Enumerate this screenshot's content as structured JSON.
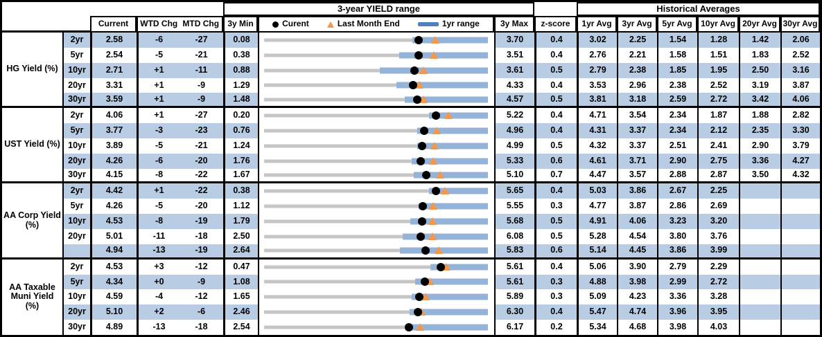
{
  "header": {
    "yield_range_title": "3-year YIELD range",
    "historical_title": "Historical Averages",
    "columns": {
      "current": "Current",
      "wtd_chg": "WTD Chg",
      "mtd_chg": "MTD Chg",
      "min_3y": "3y Min",
      "max_3y": "3y Max",
      "z_score": "z-score"
    },
    "avg_cols": [
      "1yr Avg",
      "3yr Avg",
      "5yr Avg",
      "10yr Avg",
      "20yr Avg",
      "30yr Avg"
    ],
    "legend": {
      "current": "Curent",
      "last_month_end": "Last Month End",
      "range_1yr": "1yr range"
    }
  },
  "colors": {
    "row_shade": "#b8cce4",
    "bar_1yr": "#95b3d7",
    "track_3y": "#c6c6c6",
    "current_dot": "#000000",
    "last_month_end_triangle": "#f79646",
    "legend_swatch": "#4f81bd",
    "border": "#000000"
  },
  "chart_data": {
    "type": "table",
    "embedded_chart": "horizontal-range-bar",
    "title": "3-year YIELD range",
    "legend_entries": [
      "Curent",
      "Last Month End",
      "1yr range"
    ],
    "columns": [
      "Current",
      "WTD Chg",
      "MTD Chg",
      "3y Min",
      "3y Max",
      "z-score",
      "1yr Avg",
      "3yr Avg",
      "5yr Avg",
      "10yr Avg",
      "20yr Avg",
      "30yr Avg"
    ],
    "note": "Each row chart spans 3y Min to 3y Max; gray track = 3y range, blue bar = 1yr range (low estimated from pixels, high = 3y Max), black dot = Current, orange triangle = Last Month End (Current - MTD/100).",
    "sections": [
      {
        "label": "HG Yield (%)",
        "rows": [
          {
            "tenor": "2yr",
            "current": "2.58",
            "wtd": "-6",
            "mtd": "-27",
            "min3y": "0.08",
            "max3y": "3.70",
            "zscore": "0.4",
            "avgs": [
              "3.02",
              "2.25",
              "1.54",
              "1.28",
              "1.42",
              "2.06"
            ],
            "last_month_end": 2.85,
            "bar1yr_low": 2.48,
            "bar1yr_high": 3.7
          },
          {
            "tenor": "5yr",
            "current": "2.54",
            "wtd": "-5",
            "mtd": "-21",
            "min3y": "0.38",
            "max3y": "3.51",
            "zscore": "0.4",
            "avgs": [
              "2.76",
              "2.21",
              "1.58",
              "1.51",
              "1.83",
              "2.52"
            ],
            "last_month_end": 2.75,
            "bar1yr_low": 2.27,
            "bar1yr_high": 3.51
          },
          {
            "tenor": "10yr",
            "current": "2.71",
            "wtd": "+1",
            "mtd": "-11",
            "min3y": "0.88",
            "max3y": "3.61",
            "zscore": "0.5",
            "avgs": [
              "2.79",
              "2.38",
              "1.85",
              "1.95",
              "2.50",
              "3.16"
            ],
            "last_month_end": 2.82,
            "bar1yr_low": 2.29,
            "bar1yr_high": 3.61
          },
          {
            "tenor": "20yr",
            "current": "3.31",
            "wtd": "+1",
            "mtd": "-9",
            "min3y": "1.29",
            "max3y": "4.33",
            "zscore": "0.4",
            "avgs": [
              "3.53",
              "2.96",
              "2.38",
              "2.52",
              "3.19",
              "3.87"
            ],
            "last_month_end": 3.4,
            "bar1yr_low": 3.09,
            "bar1yr_high": 4.33
          },
          {
            "tenor": "30yr",
            "current": "3.59",
            "wtd": "+1",
            "mtd": "-9",
            "min3y": "1.48",
            "max3y": "4.57",
            "zscore": "0.5",
            "avgs": [
              "3.81",
              "3.18",
              "2.59",
              "2.72",
              "3.42",
              "4.06"
            ],
            "last_month_end": 3.68,
            "bar1yr_low": 3.42,
            "bar1yr_high": 4.57
          }
        ]
      },
      {
        "label": "UST Yield (%)",
        "rows": [
          {
            "tenor": "2yr",
            "current": "4.06",
            "wtd": "+1",
            "mtd": "-27",
            "min3y": "0.20",
            "max3y": "5.22",
            "zscore": "0.4",
            "avgs": [
              "4.71",
              "3.54",
              "2.34",
              "1.87",
              "1.88",
              "2.82"
            ],
            "last_month_end": 4.33,
            "bar1yr_low": 3.9,
            "bar1yr_high": 5.22
          },
          {
            "tenor": "5yr",
            "current": "3.77",
            "wtd": "-3",
            "mtd": "-23",
            "min3y": "0.76",
            "max3y": "4.96",
            "zscore": "0.4",
            "avgs": [
              "4.31",
              "3.37",
              "2.34",
              "2.12",
              "2.35",
              "3.30"
            ],
            "last_month_end": 4.0,
            "bar1yr_low": 3.64,
            "bar1yr_high": 4.96
          },
          {
            "tenor": "10yr",
            "current": "3.89",
            "wtd": "-5",
            "mtd": "-21",
            "min3y": "1.24",
            "max3y": "4.99",
            "zscore": "0.5",
            "avgs": [
              "4.32",
              "3.37",
              "2.51",
              "2.41",
              "2.90",
              "3.79"
            ],
            "last_month_end": 4.1,
            "bar1yr_low": 3.81,
            "bar1yr_high": 4.99
          },
          {
            "tenor": "20yr",
            "current": "4.26",
            "wtd": "-6",
            "mtd": "-20",
            "min3y": "1.76",
            "max3y": "5.33",
            "zscore": "0.6",
            "avgs": [
              "4.61",
              "3.71",
              "2.90",
              "2.75",
              "3.36",
              "4.27"
            ],
            "last_month_end": 4.46,
            "bar1yr_low": 4.11,
            "bar1yr_high": 5.33
          },
          {
            "tenor": "30yr",
            "current": "4.15",
            "wtd": "-8",
            "mtd": "-22",
            "min3y": "1.67",
            "max3y": "5.10",
            "zscore": "0.7",
            "avgs": [
              "4.47",
              "3.57",
              "2.88",
              "2.87",
              "3.50",
              "4.32"
            ],
            "last_month_end": 4.37,
            "bar1yr_low": 3.96,
            "bar1yr_high": 5.1
          }
        ]
      },
      {
        "label": "AA Corp Yield (%)",
        "rows": [
          {
            "tenor": "2yr",
            "current": "4.42",
            "wtd": "+1",
            "mtd": "-22",
            "min3y": "0.38",
            "max3y": "5.65",
            "zscore": "0.4",
            "avgs": [
              "5.03",
              "3.86",
              "2.67",
              "2.25",
              "",
              ""
            ],
            "last_month_end": 4.64,
            "bar1yr_low": 4.26,
            "bar1yr_high": 5.65
          },
          {
            "tenor": "5yr",
            "current": "4.26",
            "wtd": "-5",
            "mtd": "-20",
            "min3y": "1.12",
            "max3y": "5.55",
            "zscore": "0.3",
            "avgs": [
              "4.77",
              "3.87",
              "2.86",
              "2.69",
              "",
              ""
            ],
            "last_month_end": 4.46,
            "bar1yr_low": 4.18,
            "bar1yr_high": 5.55
          },
          {
            "tenor": "10yr",
            "current": "4.53",
            "wtd": "-8",
            "mtd": "-19",
            "min3y": "1.79",
            "max3y": "5.68",
            "zscore": "0.5",
            "avgs": [
              "4.91",
              "4.06",
              "3.23",
              "3.20",
              "",
              ""
            ],
            "last_month_end": 4.72,
            "bar1yr_low": 4.33,
            "bar1yr_high": 5.68
          },
          {
            "tenor": "20yr",
            "current": "5.01",
            "wtd": "-11",
            "mtd": "-18",
            "min3y": "2.50",
            "max3y": "6.08",
            "zscore": "0.5",
            "avgs": [
              "5.28",
              "4.54",
              "3.80",
              "3.76",
              "",
              ""
            ],
            "last_month_end": 5.19,
            "bar1yr_low": 4.72,
            "bar1yr_high": 6.08
          },
          {
            "tenor": "",
            "current": "4.94",
            "wtd": "-13",
            "mtd": "-19",
            "min3y": "2.64",
            "max3y": "5.83",
            "zscore": "0.6",
            "avgs": [
              "5.14",
              "4.45",
              "3.86",
              "3.99",
              "",
              ""
            ],
            "last_month_end": 5.13,
            "bar1yr_low": 4.58,
            "bar1yr_high": 5.83
          }
        ]
      },
      {
        "label": "AA Taxable Muni Yield (%)",
        "rows": [
          {
            "tenor": "2yr",
            "current": "4.53",
            "wtd": "+3",
            "mtd": "-12",
            "min3y": "0.47",
            "max3y": "5.61",
            "zscore": "0.4",
            "avgs": [
              "5.06",
              "3.90",
              "2.79",
              "2.29",
              "",
              ""
            ],
            "last_month_end": 4.65,
            "bar1yr_low": 4.29,
            "bar1yr_high": 5.61
          },
          {
            "tenor": "5yr",
            "current": "4.34",
            "wtd": "+0",
            "mtd": "-9",
            "min3y": "1.08",
            "max3y": "5.61",
            "zscore": "0.3",
            "avgs": [
              "4.88",
              "3.98",
              "2.99",
              "2.72",
              "",
              ""
            ],
            "last_month_end": 4.43,
            "bar1yr_low": 4.14,
            "bar1yr_high": 5.61
          },
          {
            "tenor": "10yr",
            "current": "4.59",
            "wtd": "-4",
            "mtd": "-12",
            "min3y": "1.65",
            "max3y": "5.89",
            "zscore": "0.3",
            "avgs": [
              "5.09",
              "4.23",
              "3.36",
              "3.28",
              "",
              ""
            ],
            "last_month_end": 4.71,
            "bar1yr_low": 4.45,
            "bar1yr_high": 5.89
          },
          {
            "tenor": "20yr",
            "current": "5.10",
            "wtd": "+2",
            "mtd": "-6",
            "min3y": "2.46",
            "max3y": "6.30",
            "zscore": "0.4",
            "avgs": [
              "5.47",
              "4.74",
              "3.96",
              "3.95",
              "",
              ""
            ],
            "last_month_end": 5.16,
            "bar1yr_low": 4.96,
            "bar1yr_high": 6.3
          },
          {
            "tenor": "30yr",
            "current": "4.89",
            "wtd": "-13",
            "mtd": "-18",
            "min3y": "2.54",
            "max3y": "6.17",
            "zscore": "0.2",
            "avgs": [
              "5.34",
              "4.68",
              "3.98",
              "4.03",
              "",
              ""
            ],
            "last_month_end": 5.07,
            "bar1yr_low": 4.83,
            "bar1yr_high": 6.17
          }
        ]
      }
    ]
  }
}
